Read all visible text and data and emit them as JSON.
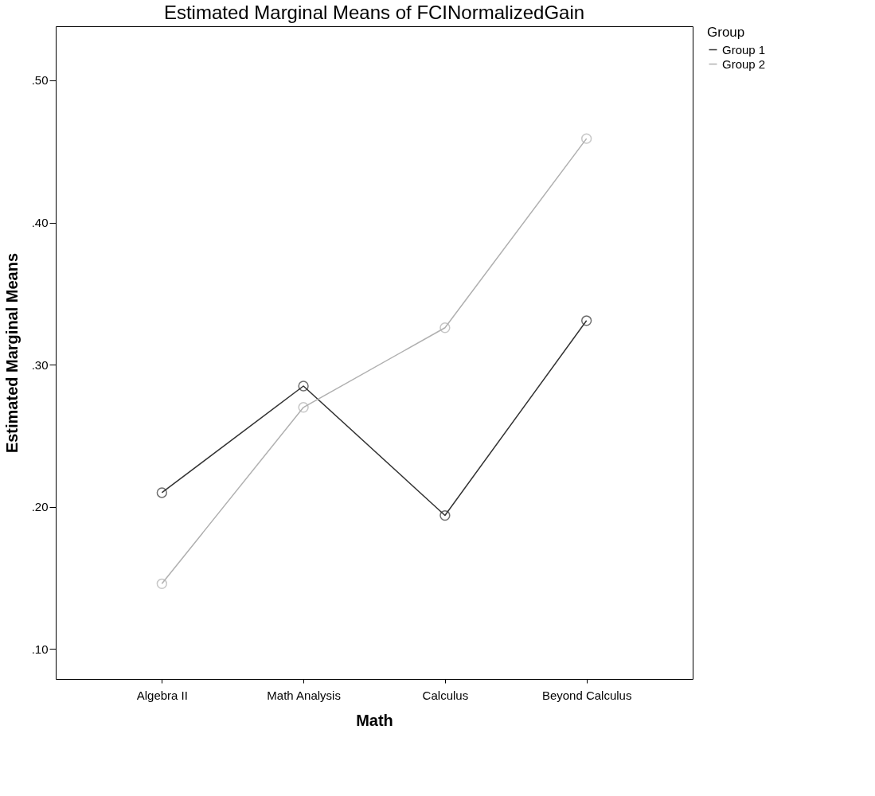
{
  "chart_data": {
    "type": "line",
    "title": "Estimated Marginal Means of FCINormalizedGain",
    "xlabel": "Math",
    "ylabel": "Estimated Marginal Means",
    "legend_title": "Group",
    "categories": [
      "Algebra II",
      "Math Analysis",
      "Calculus",
      "Beyond Calculus"
    ],
    "series": [
      {
        "name": "Group 1",
        "color": "#333333",
        "values": [
          0.21,
          0.285,
          0.194,
          0.331
        ]
      },
      {
        "name": "Group 2",
        "color": "#b0b0b0",
        "values": [
          0.146,
          0.27,
          0.326,
          0.459
        ]
      }
    ],
    "ylim": [
      0.079,
      0.538
    ],
    "yticks": [
      {
        "value": 0.1,
        "label": ".10"
      },
      {
        "value": 0.2,
        "label": ".20"
      },
      {
        "value": 0.3,
        "label": ".30"
      },
      {
        "value": 0.4,
        "label": ".40"
      },
      {
        "value": 0.5,
        "label": ".50"
      }
    ],
    "grid": false,
    "legend": "top right",
    "marker": "circle",
    "line_style": "solid"
  }
}
